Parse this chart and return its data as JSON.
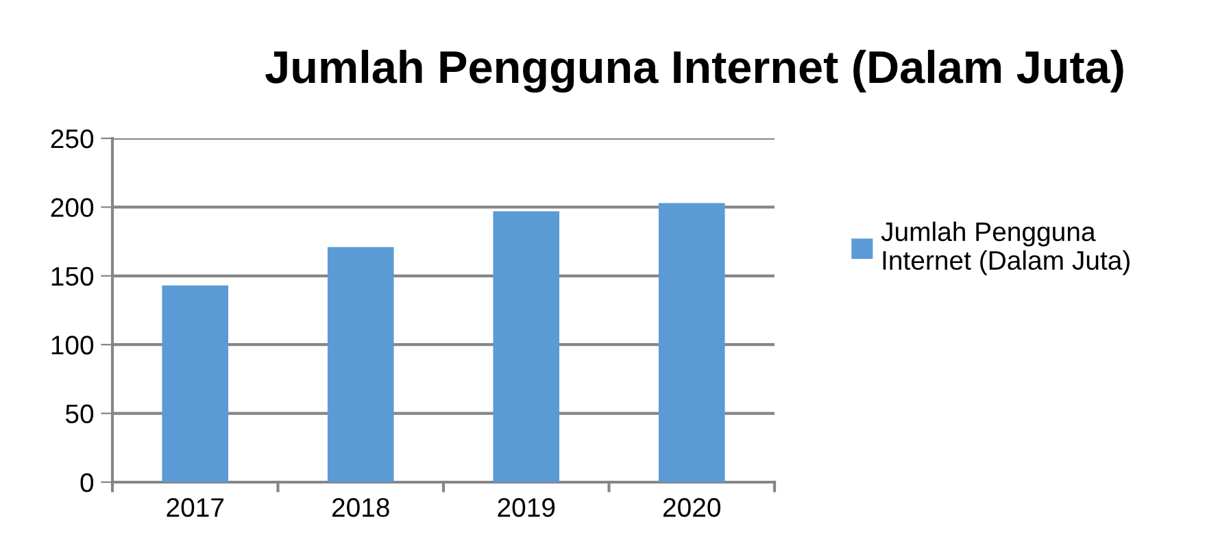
{
  "chart_data": {
    "type": "bar",
    "title": "Jumlah Pengguna Internet (Dalam Juta)",
    "categories": [
      "2017",
      "2018",
      "2019",
      "2020"
    ],
    "series": [
      {
        "name": "Jumlah Pengguna\nInternet (Dalam Juta)",
        "color": "#5b9bd5",
        "values": [
          143,
          171,
          197,
          203
        ]
      }
    ],
    "ylim": [
      0,
      250
    ],
    "yticks": [
      0,
      50,
      100,
      150,
      200,
      250
    ],
    "grid": "y",
    "legend": "right"
  }
}
